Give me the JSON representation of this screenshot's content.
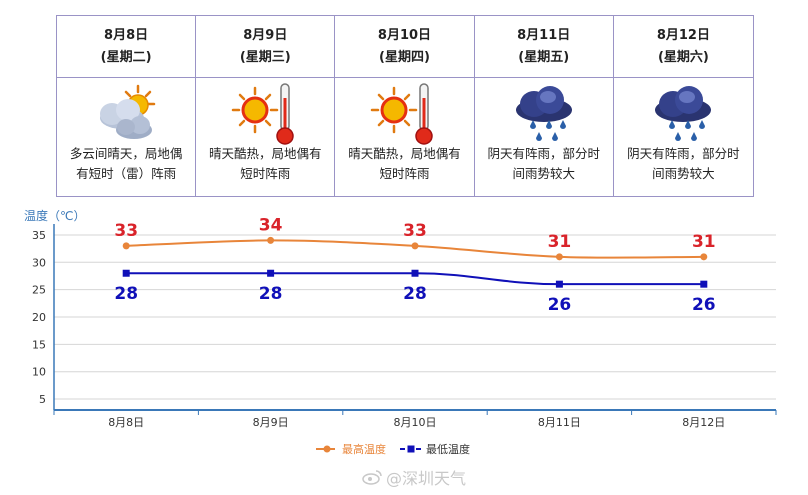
{
  "forecast": [
    {
      "date": "8月8日",
      "weekday": "(星期二)",
      "icon": "partly-cloudy-thunder-icon",
      "desc_line1": "多云间晴天，局地偶",
      "desc_line2": "有短时（雷）阵雨"
    },
    {
      "date": "8月9日",
      "weekday": "(星期三)",
      "icon": "sunny-hot-thermometer-icon",
      "desc_line1": "晴天酷热，局地偶有",
      "desc_line2": "短时阵雨"
    },
    {
      "date": "8月10日",
      "weekday": "(星期四)",
      "icon": "sunny-hot-thermometer-icon",
      "desc_line1": "晴天酷热，局地偶有",
      "desc_line2": "短时阵雨"
    },
    {
      "date": "8月11日",
      "weekday": "(星期五)",
      "icon": "dark-cloud-rain-icon",
      "desc_line1": "阴天有阵雨，部分时",
      "desc_line2": "间雨势较大"
    },
    {
      "date": "8月12日",
      "weekday": "(星期六)",
      "icon": "dark-cloud-rain-icon",
      "desc_line1": "阴天有阵雨，部分时",
      "desc_line2": "间雨势较大"
    }
  ],
  "chart_data": {
    "type": "line",
    "ylabel": "温度（℃）",
    "categories": [
      "8月8日",
      "8月9日",
      "8月10日",
      "8月11日",
      "8月12日"
    ],
    "yticks": [
      5,
      10,
      15,
      20,
      25,
      30,
      35
    ],
    "ylim": [
      3,
      37
    ],
    "grid": true,
    "legend_position": "bottom-center",
    "series": [
      {
        "name": "最高温度",
        "values": [
          33,
          34,
          33,
          31,
          31
        ],
        "color": "#e8853a",
        "label_color": "#d9232a",
        "marker": "circle"
      },
      {
        "name": "最低温度",
        "values": [
          28,
          28,
          28,
          26,
          26
        ],
        "color": "#1010b8",
        "label_color": "#1010b8",
        "marker": "square"
      }
    ]
  },
  "watermark": "@深圳天气"
}
